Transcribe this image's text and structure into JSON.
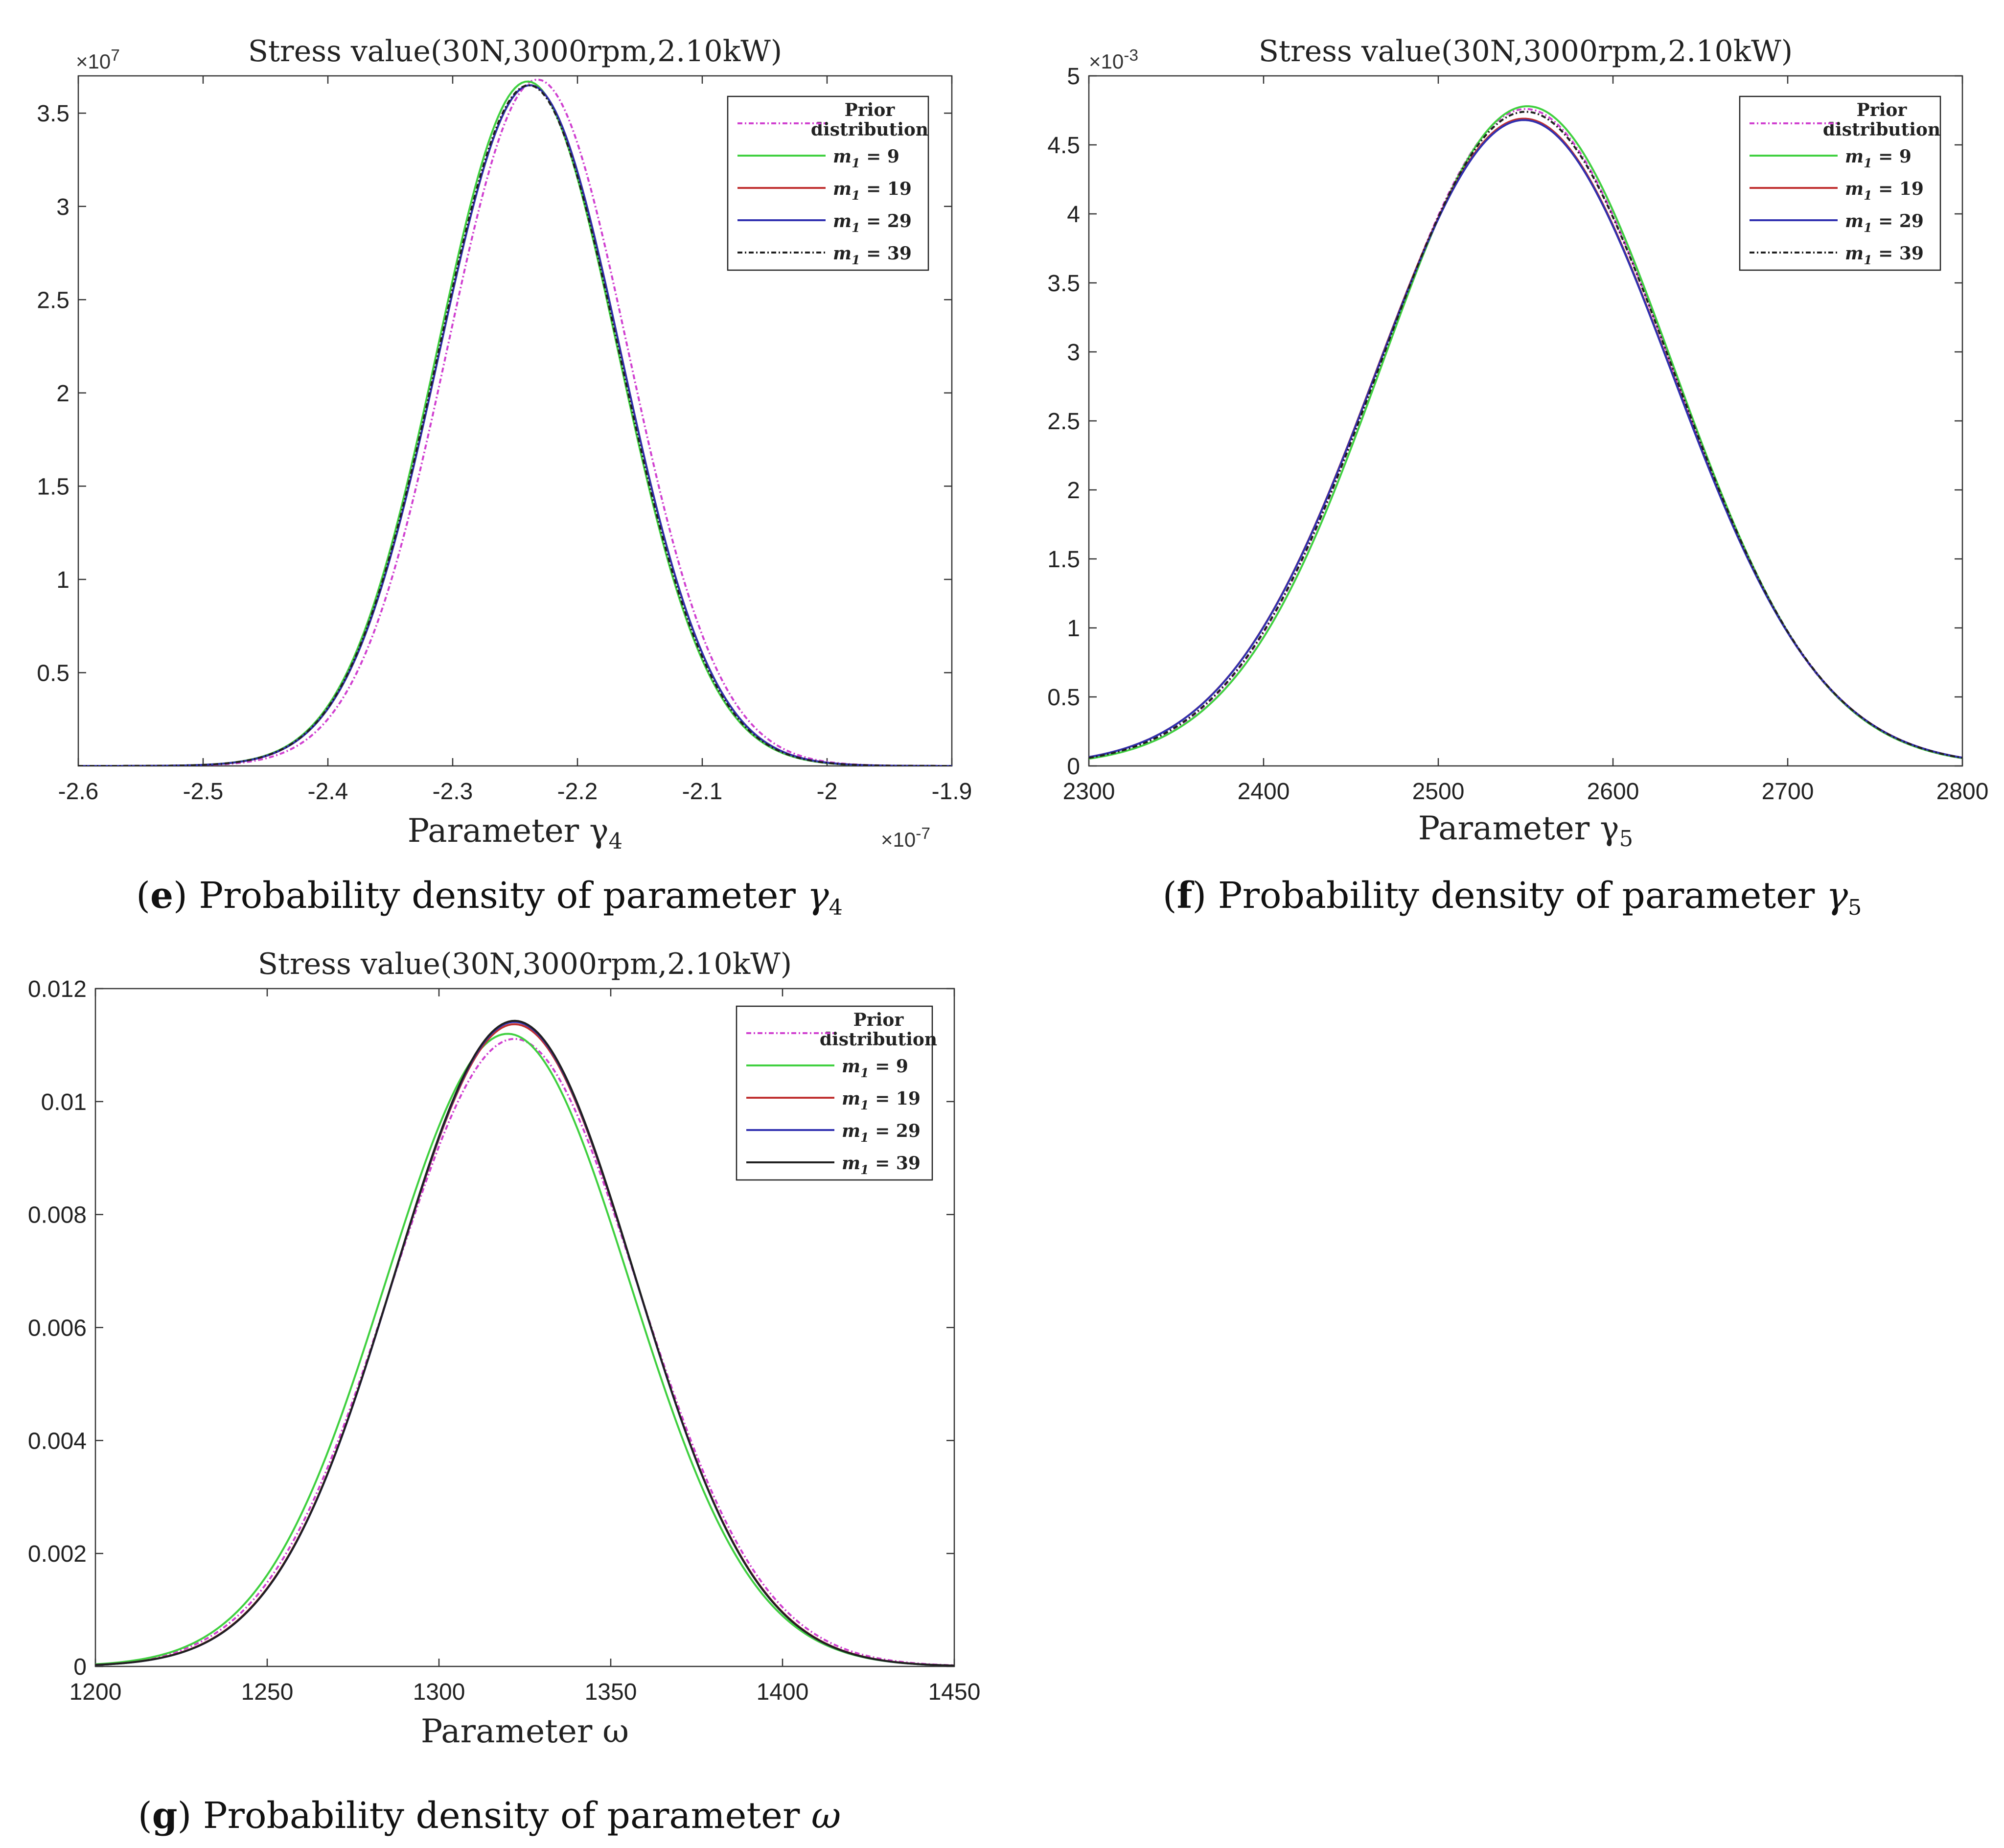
{
  "chart_data": [
    {
      "type": "line",
      "panel": "e",
      "title": "Stress value(30N,3000rpm,2.10kW)",
      "xlabel": "Parameter γ4",
      "x_multiplier": "×10^-7",
      "y_multiplier": "×10^7",
      "xlim": [
        -2.6,
        -1.9
      ],
      "ylim": [
        0,
        3.7
      ],
      "xticks": [
        -2.6,
        -2.5,
        -2.4,
        -2.3,
        -2.2,
        -2.1,
        -2.0,
        -1.9
      ],
      "xtick_labels": [
        "-2.6",
        "-2.5",
        "-2.4",
        "-2.3",
        "-2.2",
        "-2.1",
        "-2",
        "-1.9"
      ],
      "yticks": [
        0.5,
        1,
        1.5,
        2,
        2.5,
        3,
        3.5
      ],
      "ytick_labels": [
        "0.5",
        "1",
        "1.5",
        "2",
        "2.5",
        "3",
        "3.5"
      ],
      "legend_position": "top-right",
      "series": [
        {
          "name": "Prior distribution",
          "color": "#d040d0",
          "dash": "dashdot",
          "mu": -2.232,
          "sigma": 0.0725,
          "peak": 3.68
        },
        {
          "name": "m1 = 9",
          "color": "#40d040",
          "dash": "solid",
          "mu": -2.24,
          "sigma": 0.0725,
          "peak": 3.67
        },
        {
          "name": "m1 = 19",
          "color": "#c03030",
          "dash": "solid",
          "mu": -2.238,
          "sigma": 0.0728,
          "peak": 3.65
        },
        {
          "name": "m1 = 29",
          "color": "#3030b0",
          "dash": "solid",
          "mu": -2.238,
          "sigma": 0.0728,
          "peak": 3.65
        },
        {
          "name": "m1 = 39",
          "color": "#202020",
          "dash": "dashdot",
          "mu": -2.239,
          "sigma": 0.0726,
          "peak": 3.65
        }
      ],
      "caption": {
        "letter": "e",
        "text": " Probability density of parameter ",
        "symbol": "γ4"
      }
    },
    {
      "type": "line",
      "panel": "f",
      "title": "Stress value(30N,3000rpm,2.10kW)",
      "xlabel": "Parameter γ5",
      "y_multiplier": "×10^-3",
      "xlim": [
        2300,
        2800
      ],
      "ylim": [
        0,
        5
      ],
      "xticks": [
        2300,
        2400,
        2500,
        2600,
        2700,
        2800
      ],
      "xtick_labels": [
        "2300",
        "2400",
        "2500",
        "2600",
        "2700",
        "2800"
      ],
      "yticks": [
        0,
        0.5,
        1,
        1.5,
        2,
        2.5,
        3,
        3.5,
        4,
        4.5,
        5
      ],
      "ytick_labels": [
        "0",
        "0.5",
        "1",
        "1.5",
        "2",
        "2.5",
        "3",
        "3.5",
        "4",
        "4.5",
        "5"
      ],
      "legend_position": "top-right",
      "series": [
        {
          "name": "Prior distribution",
          "color": "#d040d0",
          "dash": "dashdot",
          "mu": 2550,
          "sigma": 84.0,
          "peak": 4.76
        },
        {
          "name": "m1 = 9",
          "color": "#40d040",
          "dash": "solid",
          "mu": 2551,
          "sigma": 83.5,
          "peak": 4.78
        },
        {
          "name": "m1 = 19",
          "color": "#c03030",
          "dash": "solid",
          "mu": 2549,
          "sigma": 85.0,
          "peak": 4.69
        },
        {
          "name": "m1 = 29",
          "color": "#3030b0",
          "dash": "solid",
          "mu": 2549,
          "sigma": 85.0,
          "peak": 4.68
        },
        {
          "name": "m1 = 39",
          "color": "#202020",
          "dash": "dashdot",
          "mu": 2550,
          "sigma": 84.3,
          "peak": 4.74
        }
      ],
      "caption": {
        "letter": "f",
        "text": " Probability density of parameter ",
        "symbol": "γ5"
      }
    },
    {
      "type": "line",
      "panel": "g",
      "title": "Stress value(30N,3000rpm,2.10kW)",
      "xlabel": "Parameter ω",
      "xlim": [
        1200,
        1450
      ],
      "ylim": [
        0,
        0.012
      ],
      "xticks": [
        1200,
        1250,
        1300,
        1350,
        1400,
        1450
      ],
      "xtick_labels": [
        "1200",
        "1250",
        "1300",
        "1350",
        "1400",
        "1450"
      ],
      "yticks": [
        0,
        0.002,
        0.004,
        0.006,
        0.008,
        0.01,
        0.012
      ],
      "ytick_labels": [
        "0",
        "0.002",
        "0.004",
        "0.006",
        "0.008",
        "0.01",
        "0.012"
      ],
      "legend_position": "top-right",
      "series": [
        {
          "name": "Prior distribution",
          "color": "#d040d0",
          "dash": "dashdot",
          "mu": 1322,
          "sigma": 35.9,
          "peak": 0.01111
        },
        {
          "name": "m1 = 9",
          "color": "#40d040",
          "dash": "solid",
          "mu": 1320,
          "sigma": 35.6,
          "peak": 0.0112
        },
        {
          "name": "m1 = 19",
          "color": "#c03030",
          "dash": "solid",
          "mu": 1322,
          "sigma": 35.1,
          "peak": 0.01137
        },
        {
          "name": "m1 = 29",
          "color": "#3030b0",
          "dash": "solid",
          "mu": 1322,
          "sigma": 35.0,
          "peak": 0.01141
        },
        {
          "name": "m1 = 39",
          "color": "#202020",
          "dash": "solid",
          "mu": 1322,
          "sigma": 35.0,
          "peak": 0.01143
        }
      ],
      "caption": {
        "letter": "g",
        "text": " Probability density of parameter ",
        "symbol": "ω"
      }
    }
  ]
}
